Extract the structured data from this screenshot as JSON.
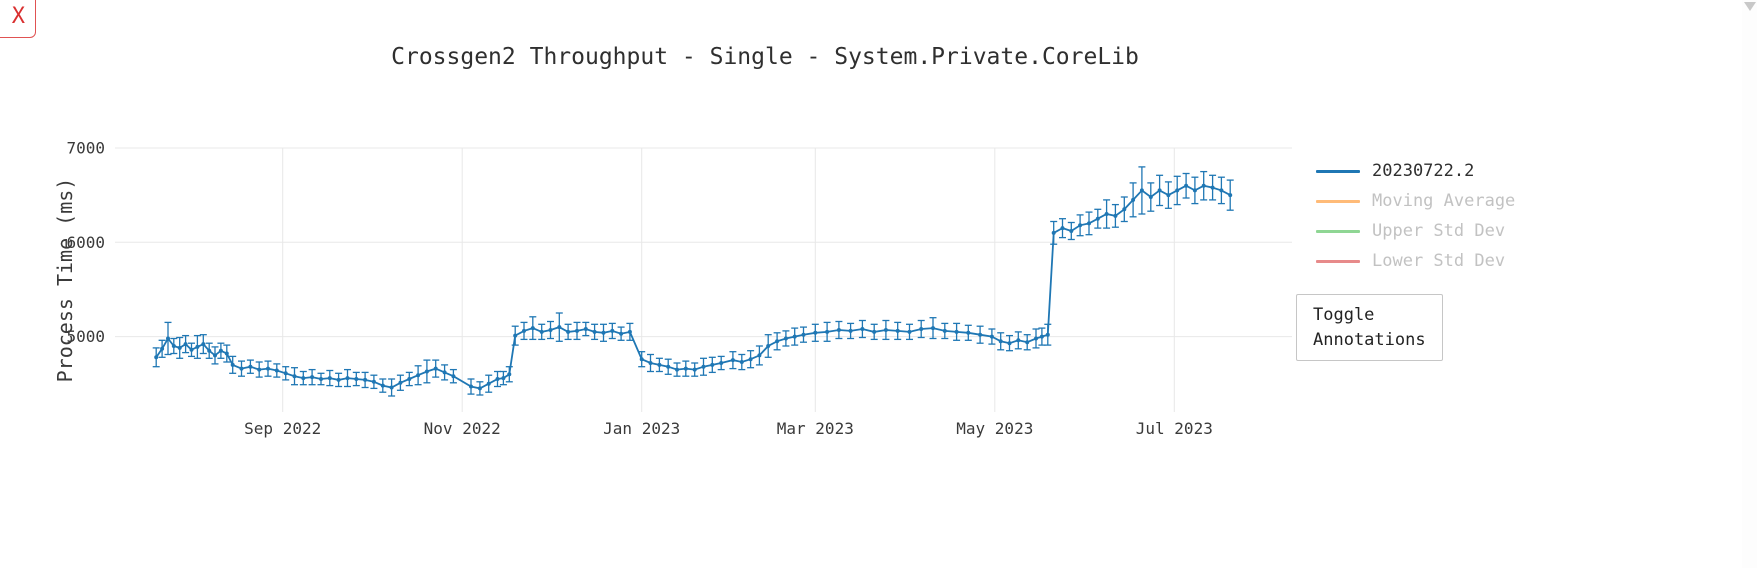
{
  "window": {
    "close_label": "X"
  },
  "annotations_button": {
    "label": "Toggle\nAnnotations"
  },
  "legend": {
    "items": [
      {
        "label": "20230722.2",
        "color": "#1f77b4",
        "active": true
      },
      {
        "label": "Moving Average",
        "color": "#ffbb78",
        "active": false
      },
      {
        "label": "Upper Std Dev",
        "color": "#8fd694",
        "active": false
      },
      {
        "label": "Lower Std Dev",
        "color": "#e78a8a",
        "active": false
      }
    ]
  },
  "chart_data": {
    "type": "line",
    "title": "Crossgen2 Throughput - Single - System.Private.CoreLib",
    "xlabel": "",
    "ylabel": "Process Time (ms)",
    "ylim": [
      4200,
      7000
    ],
    "yticks": [
      5000,
      6000,
      7000
    ],
    "x_domain": [
      "2022-07-06",
      "2023-08-10"
    ],
    "xticks": [
      {
        "label": "Sep 2022",
        "date": "2022-09-01"
      },
      {
        "label": "Nov 2022",
        "date": "2022-11-01"
      },
      {
        "label": "Jan 2023",
        "date": "2023-01-01"
      },
      {
        "label": "Mar 2023",
        "date": "2023-03-01"
      },
      {
        "label": "May 2023",
        "date": "2023-05-01"
      },
      {
        "label": "Jul 2023",
        "date": "2023-07-01"
      }
    ],
    "grid": true,
    "legend_position": "right",
    "series": [
      {
        "name": "20230722.2",
        "color": "#1f77b4",
        "points": [
          [
            "2022-07-20",
            4780,
            100
          ],
          [
            "2022-07-22",
            4870,
            90
          ],
          [
            "2022-07-24",
            4980,
            170
          ],
          [
            "2022-07-26",
            4900,
            80
          ],
          [
            "2022-07-28",
            4880,
            110
          ],
          [
            "2022-07-30",
            4920,
            90
          ],
          [
            "2022-08-01",
            4860,
            70
          ],
          [
            "2022-08-03",
            4890,
            120
          ],
          [
            "2022-08-05",
            4920,
            100
          ],
          [
            "2022-08-07",
            4850,
            80
          ],
          [
            "2022-08-09",
            4800,
            90
          ],
          [
            "2022-08-11",
            4850,
            80
          ],
          [
            "2022-08-13",
            4820,
            90
          ],
          [
            "2022-08-15",
            4700,
            90
          ],
          [
            "2022-08-18",
            4660,
            80
          ],
          [
            "2022-08-21",
            4680,
            70
          ],
          [
            "2022-08-24",
            4650,
            80
          ],
          [
            "2022-08-27",
            4660,
            80
          ],
          [
            "2022-08-30",
            4640,
            70
          ],
          [
            "2022-09-02",
            4610,
            70
          ],
          [
            "2022-09-05",
            4580,
            90
          ],
          [
            "2022-09-08",
            4560,
            70
          ],
          [
            "2022-09-11",
            4570,
            80
          ],
          [
            "2022-09-14",
            4550,
            60
          ],
          [
            "2022-09-17",
            4560,
            80
          ],
          [
            "2022-09-20",
            4540,
            70
          ],
          [
            "2022-09-23",
            4560,
            90
          ],
          [
            "2022-09-26",
            4550,
            70
          ],
          [
            "2022-09-29",
            4540,
            80
          ],
          [
            "2022-10-02",
            4520,
            70
          ],
          [
            "2022-10-05",
            4480,
            70
          ],
          [
            "2022-10-08",
            4460,
            90
          ],
          [
            "2022-10-11",
            4510,
            80
          ],
          [
            "2022-10-14",
            4550,
            70
          ],
          [
            "2022-10-17",
            4590,
            100
          ],
          [
            "2022-10-20",
            4630,
            120
          ],
          [
            "2022-10-23",
            4660,
            90
          ],
          [
            "2022-10-26",
            4620,
            80
          ],
          [
            "2022-10-29",
            4580,
            70
          ],
          [
            "2022-11-04",
            4470,
            80
          ],
          [
            "2022-11-07",
            4450,
            70
          ],
          [
            "2022-11-10",
            4500,
            90
          ],
          [
            "2022-11-13",
            4550,
            80
          ],
          [
            "2022-11-15",
            4560,
            70
          ],
          [
            "2022-11-17",
            4600,
            80
          ],
          [
            "2022-11-19",
            5010,
            100
          ],
          [
            "2022-11-22",
            5060,
            90
          ],
          [
            "2022-11-25",
            5090,
            120
          ],
          [
            "2022-11-28",
            5050,
            80
          ],
          [
            "2022-12-01",
            5070,
            90
          ],
          [
            "2022-12-04",
            5100,
            150
          ],
          [
            "2022-12-07",
            5050,
            80
          ],
          [
            "2022-12-10",
            5060,
            90
          ],
          [
            "2022-12-13",
            5080,
            70
          ],
          [
            "2022-12-16",
            5050,
            80
          ],
          [
            "2022-12-19",
            5040,
            90
          ],
          [
            "2022-12-22",
            5060,
            80
          ],
          [
            "2022-12-25",
            5030,
            70
          ],
          [
            "2022-12-28",
            5050,
            90
          ],
          [
            "2023-01-01",
            4760,
            80
          ],
          [
            "2023-01-04",
            4720,
            90
          ],
          [
            "2023-01-07",
            4700,
            70
          ],
          [
            "2023-01-10",
            4680,
            80
          ],
          [
            "2023-01-13",
            4650,
            70
          ],
          [
            "2023-01-16",
            4660,
            80
          ],
          [
            "2023-01-19",
            4650,
            70
          ],
          [
            "2023-01-22",
            4680,
            90
          ],
          [
            "2023-01-25",
            4700,
            80
          ],
          [
            "2023-01-28",
            4720,
            70
          ],
          [
            "2023-02-01",
            4750,
            90
          ],
          [
            "2023-02-04",
            4730,
            80
          ],
          [
            "2023-02-07",
            4760,
            90
          ],
          [
            "2023-02-10",
            4800,
            100
          ],
          [
            "2023-02-13",
            4900,
            120
          ],
          [
            "2023-02-16",
            4950,
            90
          ],
          [
            "2023-02-19",
            4980,
            80
          ],
          [
            "2023-02-22",
            5000,
            90
          ],
          [
            "2023-02-25",
            5020,
            80
          ],
          [
            "2023-03-01",
            5040,
            90
          ],
          [
            "2023-03-05",
            5050,
            100
          ],
          [
            "2023-03-09",
            5070,
            90
          ],
          [
            "2023-03-13",
            5060,
            80
          ],
          [
            "2023-03-17",
            5080,
            90
          ],
          [
            "2023-03-21",
            5050,
            80
          ],
          [
            "2023-03-25",
            5070,
            100
          ],
          [
            "2023-03-29",
            5060,
            90
          ],
          [
            "2023-04-02",
            5050,
            80
          ],
          [
            "2023-04-06",
            5080,
            90
          ],
          [
            "2023-04-10",
            5090,
            110
          ],
          [
            "2023-04-14",
            5060,
            80
          ],
          [
            "2023-04-18",
            5050,
            90
          ],
          [
            "2023-04-22",
            5040,
            80
          ],
          [
            "2023-04-26",
            5020,
            90
          ],
          [
            "2023-04-30",
            5000,
            80
          ],
          [
            "2023-05-03",
            4950,
            90
          ],
          [
            "2023-05-06",
            4930,
            80
          ],
          [
            "2023-05-09",
            4960,
            90
          ],
          [
            "2023-05-12",
            4940,
            80
          ],
          [
            "2023-05-15",
            4980,
            100
          ],
          [
            "2023-05-17",
            5000,
            90
          ],
          [
            "2023-05-19",
            5020,
            110
          ],
          [
            "2023-05-21",
            6100,
            120
          ],
          [
            "2023-05-24",
            6150,
            100
          ],
          [
            "2023-05-27",
            6120,
            90
          ],
          [
            "2023-05-30",
            6180,
            110
          ],
          [
            "2023-06-02",
            6200,
            120
          ],
          [
            "2023-06-05",
            6250,
            100
          ],
          [
            "2023-06-08",
            6300,
            150
          ],
          [
            "2023-06-11",
            6280,
            120
          ],
          [
            "2023-06-14",
            6350,
            130
          ],
          [
            "2023-06-17",
            6450,
            180
          ],
          [
            "2023-06-20",
            6550,
            250
          ],
          [
            "2023-06-23",
            6480,
            150
          ],
          [
            "2023-06-26",
            6550,
            160
          ],
          [
            "2023-06-29",
            6500,
            140
          ],
          [
            "2023-07-02",
            6550,
            150
          ],
          [
            "2023-07-05",
            6600,
            130
          ],
          [
            "2023-07-08",
            6550,
            140
          ],
          [
            "2023-07-11",
            6600,
            150
          ],
          [
            "2023-07-14",
            6580,
            130
          ],
          [
            "2023-07-17",
            6550,
            140
          ],
          [
            "2023-07-20",
            6500,
            160
          ]
        ]
      }
    ]
  }
}
